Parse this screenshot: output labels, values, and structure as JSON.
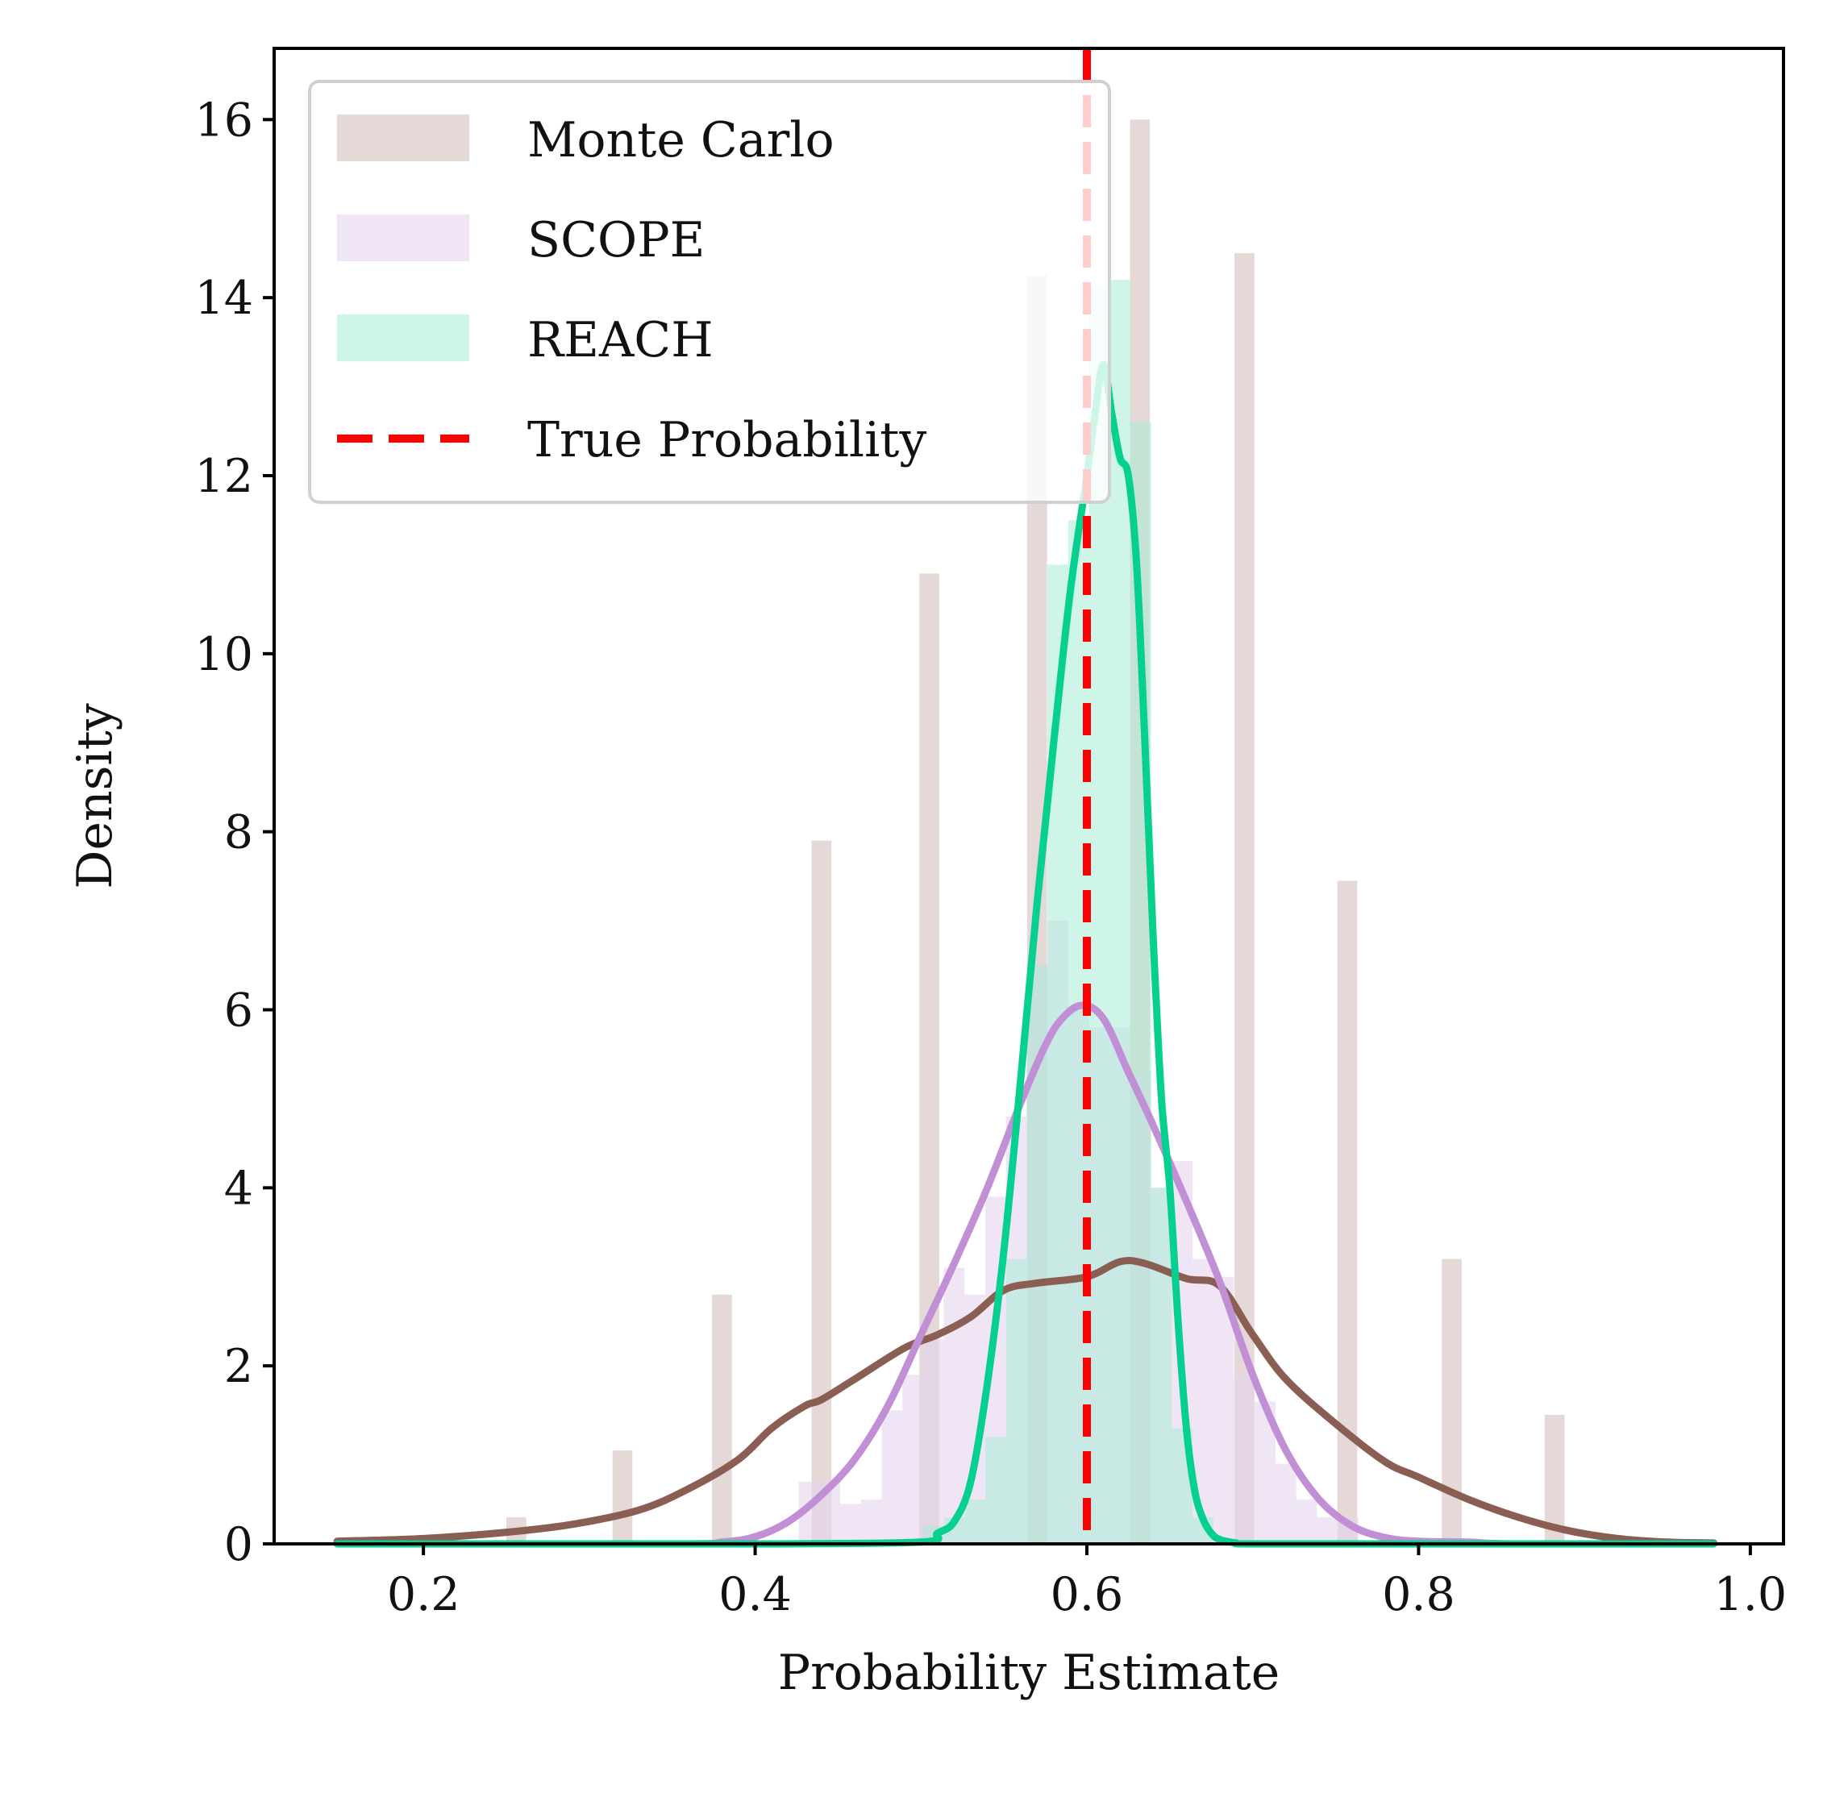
{
  "chart_data": {
    "type": "histogram+kde",
    "xlabel": "Probability Estimate",
    "ylabel": "Density",
    "xlim": [
      0.11,
      1.02
    ],
    "ylim": [
      0,
      16.8
    ],
    "xticks": [
      0.2,
      0.4,
      0.6,
      0.8,
      1.0
    ],
    "xtick_labels": [
      "0.2",
      "0.4",
      "0.6",
      "0.8",
      "1.0"
    ],
    "yticks": [
      0,
      2,
      4,
      6,
      8,
      10,
      12,
      14,
      16
    ],
    "ytick_labels": [
      "0",
      "2",
      "4",
      "6",
      "8",
      "10",
      "12",
      "14",
      "16"
    ],
    "grid": false,
    "legend_position": "top-left",
    "true_probability": 0.6,
    "legend": [
      {
        "label": "Monte Carlo",
        "kind": "patch",
        "series": "monte_carlo"
      },
      {
        "label": "SCOPE",
        "kind": "patch",
        "series": "scope"
      },
      {
        "label": "REACH",
        "kind": "patch",
        "series": "reach"
      },
      {
        "label": "True Probability",
        "kind": "dashed-line",
        "series": "true_prob"
      }
    ],
    "colors": {
      "monte_carlo_hist": "#d9c9c5",
      "monte_carlo_kde": "#8b5e53",
      "scope_hist": "#e6d4ee",
      "scope_kde": "#c18fd6",
      "reach_hist": "#a8ecd6",
      "reach_kde": "#06d08f",
      "true_line": "#ff0000"
    },
    "histograms": {
      "monte_carlo": {
        "bar_width": 0.012,
        "bins": [
          {
            "x": 0.256,
            "density": 0.3
          },
          {
            "x": 0.32,
            "density": 1.05
          },
          {
            "x": 0.38,
            "density": 2.8
          },
          {
            "x": 0.44,
            "density": 7.9
          },
          {
            "x": 0.505,
            "density": 10.9
          },
          {
            "x": 0.57,
            "density": 14.25
          },
          {
            "x": 0.632,
            "density": 16.0
          },
          {
            "x": 0.695,
            "density": 14.5
          },
          {
            "x": 0.757,
            "density": 7.45
          },
          {
            "x": 0.82,
            "density": 3.2
          },
          {
            "x": 0.882,
            "density": 1.45
          }
        ]
      },
      "scope": {
        "bar_width": 0.0125,
        "bins": [
          {
            "x": 0.4325,
            "density": 0.7
          },
          {
            "x": 0.445,
            "density": 0.7
          },
          {
            "x": 0.4575,
            "density": 0.45
          },
          {
            "x": 0.47,
            "density": 0.5
          },
          {
            "x": 0.4825,
            "density": 1.5
          },
          {
            "x": 0.495,
            "density": 1.9
          },
          {
            "x": 0.5075,
            "density": 2.3
          },
          {
            "x": 0.52,
            "density": 3.1
          },
          {
            "x": 0.5325,
            "density": 2.8
          },
          {
            "x": 0.545,
            "density": 3.9
          },
          {
            "x": 0.5575,
            "density": 4.8
          },
          {
            "x": 0.57,
            "density": 6.5
          },
          {
            "x": 0.5825,
            "density": 7.0
          },
          {
            "x": 0.595,
            "density": 6.0
          },
          {
            "x": 0.6075,
            "density": 5.8
          },
          {
            "x": 0.62,
            "density": 5.8
          },
          {
            "x": 0.6325,
            "density": 5.3
          },
          {
            "x": 0.645,
            "density": 4.0
          },
          {
            "x": 0.6575,
            "density": 4.3
          },
          {
            "x": 0.67,
            "density": 3.2
          },
          {
            "x": 0.6825,
            "density": 3.0
          },
          {
            "x": 0.695,
            "density": 1.9
          },
          {
            "x": 0.7075,
            "density": 1.6
          },
          {
            "x": 0.72,
            "density": 0.9
          },
          {
            "x": 0.7325,
            "density": 0.5
          },
          {
            "x": 0.745,
            "density": 0.3
          },
          {
            "x": 0.7575,
            "density": 0.3
          }
        ]
      },
      "reach": {
        "bar_width": 0.0125,
        "bins": [
          {
            "x": 0.5075,
            "density": 0.2
          },
          {
            "x": 0.52,
            "density": 0.3
          },
          {
            "x": 0.5325,
            "density": 0.5
          },
          {
            "x": 0.545,
            "density": 1.2
          },
          {
            "x": 0.5575,
            "density": 3.2
          },
          {
            "x": 0.57,
            "density": 6.5
          },
          {
            "x": 0.5825,
            "density": 11.0
          },
          {
            "x": 0.595,
            "density": 11.5
          },
          {
            "x": 0.6075,
            "density": 14.1
          },
          {
            "x": 0.62,
            "density": 14.2
          },
          {
            "x": 0.6325,
            "density": 12.6
          },
          {
            "x": 0.645,
            "density": 4.0
          },
          {
            "x": 0.6575,
            "density": 1.3
          },
          {
            "x": 0.67,
            "density": 0.3
          }
        ]
      }
    },
    "kde": {
      "monte_carlo": {
        "x": [
          0.148,
          0.2,
          0.25,
          0.29,
          0.33,
          0.36,
          0.39,
          0.41,
          0.43,
          0.44,
          0.46,
          0.49,
          0.51,
          0.53,
          0.55,
          0.57,
          0.6,
          0.62,
          0.635,
          0.66,
          0.68,
          0.7,
          0.72,
          0.75,
          0.78,
          0.8,
          0.83,
          0.86,
          0.89,
          0.92,
          0.95,
          0.978
        ],
        "y": [
          0.03,
          0.06,
          0.13,
          0.22,
          0.38,
          0.62,
          0.95,
          1.3,
          1.55,
          1.62,
          1.85,
          2.2,
          2.35,
          2.55,
          2.85,
          2.93,
          3.0,
          3.17,
          3.15,
          2.98,
          2.9,
          2.35,
          1.85,
          1.35,
          0.92,
          0.75,
          0.5,
          0.3,
          0.15,
          0.06,
          0.02,
          0.01
        ]
      },
      "scope": {
        "x": [
          0.148,
          0.35,
          0.38,
          0.4,
          0.42,
          0.44,
          0.46,
          0.48,
          0.5,
          0.52,
          0.54,
          0.56,
          0.575,
          0.585,
          0.597,
          0.61,
          0.625,
          0.64,
          0.66,
          0.68,
          0.7,
          0.72,
          0.74,
          0.76,
          0.78,
          0.8,
          0.83,
          0.86,
          0.978
        ],
        "y": [
          0.0,
          0.0,
          0.02,
          0.08,
          0.25,
          0.55,
          0.95,
          1.55,
          2.35,
          3.15,
          4.0,
          4.95,
          5.6,
          5.9,
          6.05,
          5.9,
          5.3,
          4.7,
          3.85,
          2.95,
          1.9,
          1.05,
          0.5,
          0.2,
          0.07,
          0.03,
          0.02,
          0.0,
          0.0
        ]
      },
      "reach": {
        "x": [
          0.148,
          0.3,
          0.4,
          0.5,
          0.51,
          0.52,
          0.53,
          0.54,
          0.55,
          0.56,
          0.57,
          0.58,
          0.59,
          0.6,
          0.605,
          0.61,
          0.615,
          0.62,
          0.625,
          0.63,
          0.635,
          0.64,
          0.645,
          0.65,
          0.655,
          0.66,
          0.665,
          0.67,
          0.675,
          0.68,
          0.69,
          0.7,
          0.8,
          0.9,
          0.978
        ],
        "y": [
          0.0,
          0.0,
          0.0,
          0.02,
          0.12,
          0.25,
          0.7,
          1.8,
          3.3,
          5.2,
          7.2,
          9.0,
          10.7,
          12.0,
          12.7,
          13.25,
          12.7,
          12.2,
          12.0,
          11.0,
          9.0,
          6.8,
          5.0,
          4.0,
          2.5,
          1.3,
          0.6,
          0.28,
          0.12,
          0.05,
          0.01,
          0.0,
          0.0,
          0.0,
          0.0
        ]
      }
    }
  }
}
